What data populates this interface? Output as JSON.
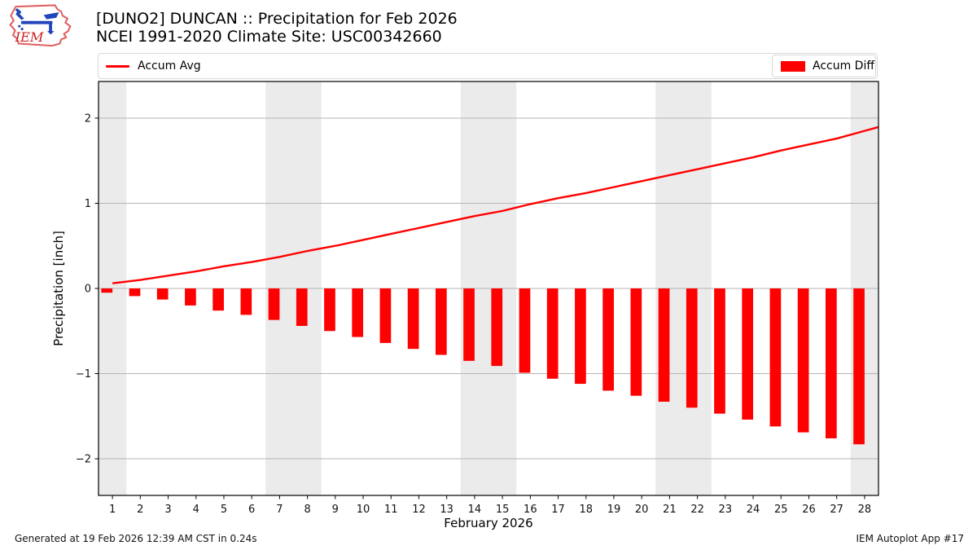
{
  "header": {
    "logo_text": "IEM",
    "title_line1": "[DUNO2] DUNCAN :: Precipitation for Feb 2026",
    "title_line2": "NCEI 1991-2020 Climate Site: USC00342660"
  },
  "legend": {
    "avg_label": "Accum Avg",
    "diff_label": "Accum Diff",
    "line_color": "#ff0000",
    "bar_color": "#ff0000"
  },
  "chart_data": {
    "type": "bar",
    "title": "[DUNO2] DUNCAN :: Precipitation for Feb 2026",
    "subtitle": "NCEI 1991-2020 Climate Site: USC00342660",
    "xlabel": "February 2026",
    "ylabel": "Precipitation [inch]",
    "x": [
      1,
      2,
      3,
      4,
      5,
      6,
      7,
      8,
      9,
      10,
      11,
      12,
      13,
      14,
      15,
      16,
      17,
      18,
      19,
      20,
      21,
      22,
      23,
      24,
      25,
      26,
      27,
      28
    ],
    "series": [
      {
        "name": "Accum Avg",
        "type": "line",
        "color": "#ff0000",
        "values": [
          0.06,
          0.1,
          0.15,
          0.2,
          0.26,
          0.31,
          0.37,
          0.44,
          0.5,
          0.57,
          0.64,
          0.71,
          0.78,
          0.85,
          0.91,
          0.99,
          1.06,
          1.12,
          1.19,
          1.26,
          1.33,
          1.4,
          1.47,
          1.54,
          1.62,
          1.69,
          1.76,
          1.85
        ]
      },
      {
        "name": "Accum Diff",
        "type": "bar",
        "color": "#ff0000",
        "values": [
          -0.05,
          -0.09,
          -0.13,
          -0.2,
          -0.26,
          -0.31,
          -0.37,
          -0.44,
          -0.5,
          -0.57,
          -0.64,
          -0.71,
          -0.78,
          -0.85,
          -0.91,
          -0.99,
          -1.06,
          -1.12,
          -1.2,
          -1.26,
          -1.33,
          -1.4,
          -1.47,
          -1.54,
          -1.62,
          -1.69,
          -1.76,
          -1.83
        ]
      }
    ],
    "xlim": [
      0.5,
      28.5
    ],
    "ylim": [
      -2.43,
      2.43
    ],
    "xticks": [
      1,
      2,
      3,
      4,
      5,
      6,
      7,
      8,
      9,
      10,
      11,
      12,
      13,
      14,
      15,
      16,
      17,
      18,
      19,
      20,
      21,
      22,
      23,
      24,
      25,
      26,
      27,
      28
    ],
    "yticks": [
      -2,
      -1,
      0,
      1,
      2
    ],
    "grid": true,
    "legend_position": "top",
    "weekend_days": [
      1,
      7,
      8,
      14,
      15,
      21,
      22,
      28
    ],
    "weekend_band_color": "#ebebeb",
    "bar_width_days": 0.4,
    "line_extends_to_right_edge": true
  },
  "footer": {
    "generated": "Generated at 19 Feb 2026 12:39 AM CST in 0.24s",
    "app": "IEM Autoplot App #17"
  }
}
